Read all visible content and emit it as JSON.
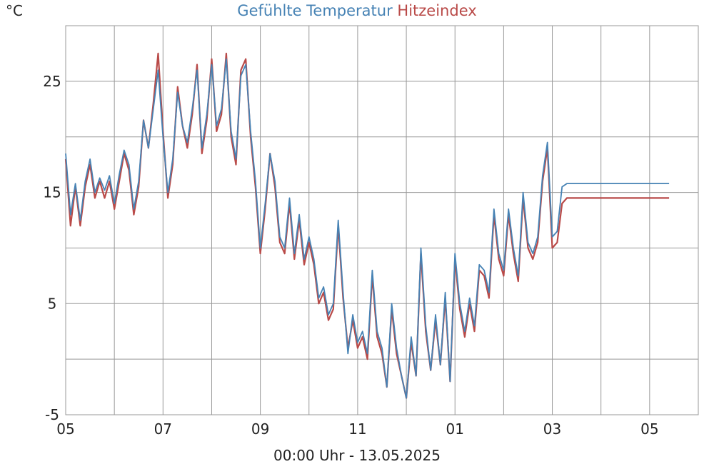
{
  "chart_data": {
    "type": "line",
    "title": "",
    "legend_placement": "top-center",
    "unit_label": "°C",
    "footer_label": "00:00 Uhr - 13.05.2025",
    "ylim": [
      -5,
      30
    ],
    "yticks": [
      -5,
      5,
      15,
      25
    ],
    "ygrid": [
      -5,
      0,
      5,
      10,
      15,
      20,
      25,
      30
    ],
    "grid": true,
    "x_range": [
      0,
      13
    ],
    "x_ticks": [
      {
        "pos": 0,
        "label": "05"
      },
      {
        "pos": 1,
        "label": ""
      },
      {
        "pos": 2,
        "label": "07"
      },
      {
        "pos": 3,
        "label": ""
      },
      {
        "pos": 4,
        "label": "09"
      },
      {
        "pos": 5,
        "label": ""
      },
      {
        "pos": 6,
        "label": "11"
      },
      {
        "pos": 7,
        "label": ""
      },
      {
        "pos": 8,
        "label": "01"
      },
      {
        "pos": 9,
        "label": ""
      },
      {
        "pos": 10,
        "label": "03"
      },
      {
        "pos": 11,
        "label": ""
      },
      {
        "pos": 12,
        "label": "05"
      },
      {
        "pos": 13,
        "label": ""
      }
    ],
    "series": [
      {
        "name": "Gefühlte Temperatur",
        "color": "#4682b4",
        "x": [
          0,
          0.1,
          0.2,
          0.3,
          0.4,
          0.5,
          0.6,
          0.7,
          0.8,
          0.9,
          1.0,
          1.1,
          1.2,
          1.3,
          1.4,
          1.5,
          1.6,
          1.7,
          1.8,
          1.9,
          2.0,
          2.1,
          2.2,
          2.3,
          2.4,
          2.5,
          2.6,
          2.7,
          2.8,
          2.9,
          3.0,
          3.1,
          3.2,
          3.3,
          3.4,
          3.5,
          3.6,
          3.7,
          3.8,
          3.9,
          4.0,
          4.1,
          4.2,
          4.3,
          4.4,
          4.5,
          4.6,
          4.7,
          4.8,
          4.9,
          5.0,
          5.1,
          5.2,
          5.3,
          5.4,
          5.5,
          5.6,
          5.7,
          5.8,
          5.9,
          6.0,
          6.1,
          6.2,
          6.3,
          6.4,
          6.5,
          6.6,
          6.7,
          6.8,
          6.9,
          7.0,
          7.1,
          7.2,
          7.3,
          7.4,
          7.5,
          7.6,
          7.7,
          7.8,
          7.9,
          8.0,
          8.1,
          8.2,
          8.3,
          8.4,
          8.5,
          8.6,
          8.7,
          8.8,
          8.9,
          9.0,
          9.1,
          9.2,
          9.3,
          9.4,
          9.5,
          9.6,
          9.7,
          9.8,
          9.9,
          10.0,
          10.1,
          10.2,
          10.3,
          10.4,
          10.5,
          10.6,
          10.7,
          10.8,
          10.9,
          11.0,
          11.1,
          11.2,
          11.3,
          11.4,
          11.5,
          11.6,
          11.7,
          11.8,
          11.9,
          12.0,
          12.1,
          12.2,
          12.3,
          12.4
        ],
        "y": [
          18.5,
          13.0,
          15.8,
          12.5,
          16.0,
          18.0,
          15.0,
          16.3,
          15.2,
          16.5,
          14.0,
          16.6,
          18.8,
          17.5,
          13.5,
          16.0,
          21.5,
          19.0,
          22.5,
          26.0,
          20.0,
          15.0,
          18.0,
          24.0,
          21.0,
          19.5,
          22.5,
          26.0,
          19.0,
          22.0,
          26.5,
          21.0,
          22.5,
          27.0,
          20.5,
          18.0,
          25.5,
          26.5,
          20.5,
          16.0,
          10.0,
          14.0,
          18.5,
          16.0,
          11.0,
          10.0,
          14.5,
          9.5,
          13.0,
          9.0,
          11.0,
          9.0,
          5.5,
          6.5,
          4.0,
          5.0,
          12.5,
          6.0,
          0.5,
          4.0,
          1.5,
          2.5,
          0.5,
          8.0,
          2.5,
          1.0,
          -2.5,
          5.0,
          1.0,
          -1.5,
          -3.5,
          2.0,
          -1.5,
          10.0,
          3.0,
          -1.0,
          4.0,
          -0.5,
          6.0,
          -2.0,
          9.5,
          5.0,
          2.5,
          5.5,
          3.0,
          8.5,
          8.0,
          6.0,
          13.5,
          9.5,
          8.0,
          13.5,
          10.0,
          7.5,
          15.0,
          10.5,
          9.5,
          11.0,
          16.5,
          19.5,
          11.0,
          11.5,
          15.5,
          15.8,
          15.8,
          15.8,
          15.8,
          15.8,
          15.8,
          15.8,
          15.8,
          15.8,
          15.8,
          15.8,
          15.8,
          15.8,
          15.8,
          15.8,
          15.8,
          15.8,
          15.8,
          15.8,
          15.8,
          15.8,
          15.8
        ]
      },
      {
        "name": "Hitzeindex",
        "color": "#b94a48",
        "x": [
          0,
          0.1,
          0.2,
          0.3,
          0.4,
          0.5,
          0.6,
          0.7,
          0.8,
          0.9,
          1.0,
          1.1,
          1.2,
          1.3,
          1.4,
          1.5,
          1.6,
          1.7,
          1.8,
          1.9,
          2.0,
          2.1,
          2.2,
          2.3,
          2.4,
          2.5,
          2.6,
          2.7,
          2.8,
          2.9,
          3.0,
          3.1,
          3.2,
          3.3,
          3.4,
          3.5,
          3.6,
          3.7,
          3.8,
          3.9,
          4.0,
          4.1,
          4.2,
          4.3,
          4.4,
          4.5,
          4.6,
          4.7,
          4.8,
          4.9,
          5.0,
          5.1,
          5.2,
          5.3,
          5.4,
          5.5,
          5.6,
          5.7,
          5.8,
          5.9,
          6.0,
          6.1,
          6.2,
          6.3,
          6.4,
          6.5,
          6.6,
          6.7,
          6.8,
          6.9,
          7.0,
          7.1,
          7.2,
          7.3,
          7.4,
          7.5,
          7.6,
          7.7,
          7.8,
          7.9,
          8.0,
          8.1,
          8.2,
          8.3,
          8.4,
          8.5,
          8.6,
          8.7,
          8.8,
          8.9,
          9.0,
          9.1,
          9.2,
          9.3,
          9.4,
          9.5,
          9.6,
          9.7,
          9.8,
          9.9,
          10.0,
          10.1,
          10.2,
          10.3,
          10.4,
          10.5,
          10.6,
          10.7,
          10.8,
          10.9,
          11.0,
          11.1,
          11.2,
          11.3,
          11.4,
          11.5,
          11.6,
          11.7,
          11.8,
          11.9,
          12.0,
          12.1,
          12.2,
          12.3,
          12.4
        ],
        "y": [
          18.0,
          12.0,
          15.5,
          12.0,
          15.5,
          17.5,
          14.5,
          16.0,
          14.5,
          16.0,
          13.5,
          16.0,
          18.5,
          17.0,
          13.0,
          15.5,
          21.5,
          19.0,
          23.0,
          27.5,
          20.5,
          14.5,
          17.5,
          24.5,
          21.0,
          19.0,
          22.0,
          26.5,
          18.5,
          21.5,
          27.0,
          20.5,
          22.0,
          27.5,
          20.0,
          17.5,
          26.0,
          27.0,
          20.0,
          15.5,
          9.5,
          13.5,
          18.5,
          15.5,
          10.5,
          9.5,
          14.0,
          9.0,
          12.5,
          8.5,
          10.5,
          8.5,
          5.0,
          6.0,
          3.5,
          4.5,
          12.0,
          5.5,
          1.0,
          3.5,
          1.0,
          2.0,
          0.0,
          7.5,
          2.0,
          0.5,
          -2.5,
          4.5,
          0.5,
          -1.5,
          -3.5,
          1.5,
          -1.5,
          9.5,
          2.5,
          -1.0,
          3.5,
          -0.5,
          5.5,
          -2.0,
          9.0,
          4.5,
          2.0,
          5.0,
          2.5,
          8.0,
          7.5,
          5.5,
          13.0,
          9.0,
          7.5,
          13.0,
          9.5,
          7.0,
          14.5,
          10.0,
          9.0,
          10.5,
          16.0,
          19.0,
          10.0,
          10.5,
          14.0,
          14.5,
          14.5,
          14.5,
          14.5,
          14.5,
          14.5,
          14.5,
          14.5,
          14.5,
          14.5,
          14.5,
          14.5,
          14.5,
          14.5,
          14.5,
          14.5,
          14.5,
          14.5,
          14.5,
          14.5,
          14.5,
          14.5
        ]
      }
    ]
  }
}
